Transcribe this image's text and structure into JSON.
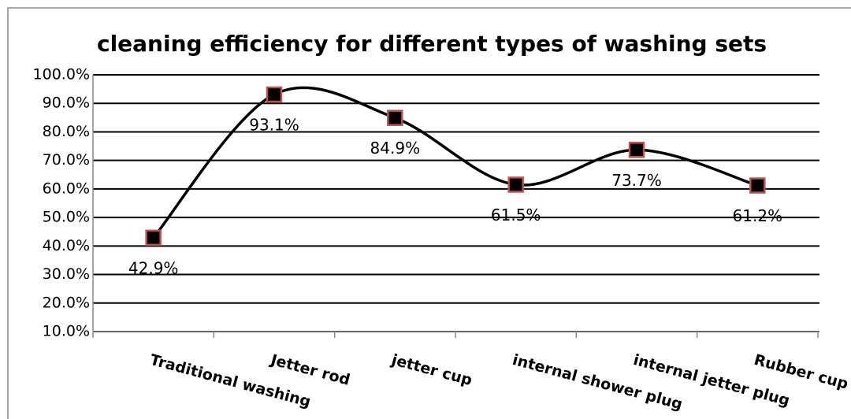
{
  "chart_data": {
    "type": "line",
    "title": "cleaning efficiency for different types of washing sets",
    "categories": [
      "Traditional washing",
      "Jetter rod",
      "jetter cup",
      "internal shower plug",
      "internal  jetter plug",
      "Rubber cup"
    ],
    "values": [
      42.9,
      93.1,
      84.9,
      61.5,
      73.7,
      61.2
    ],
    "value_labels": [
      "42.9%",
      "93.1%",
      "84.9%",
      "61.5%",
      "73.7%",
      "61.2%"
    ],
    "color": "#000000",
    "marker_edge_color": "#c0504d",
    "ylim": [
      10,
      100
    ],
    "yticks": [
      {
        "value": 10,
        "label": "10.0%"
      },
      {
        "value": 20,
        "label": "20.0%"
      },
      {
        "value": 30,
        "label": "30.0%"
      },
      {
        "value": 40,
        "label": "40.0%"
      },
      {
        "value": 50,
        "label": "50.0%"
      },
      {
        "value": 60,
        "label": "60.0%"
      },
      {
        "value": 70,
        "label": "70.0%"
      },
      {
        "value": 80,
        "label": "80.0%"
      },
      {
        "value": 90,
        "label": "90.0%"
      },
      {
        "value": 100,
        "label": "100.0%"
      }
    ],
    "grid": true,
    "smooth": true
  }
}
